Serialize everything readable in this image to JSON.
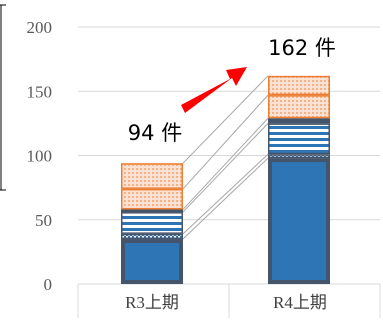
{
  "chart_data": {
    "type": "bar",
    "stacked": true,
    "categories": [
      "R3上期",
      "R4上期"
    ],
    "segments": [
      [
        35,
        4,
        17,
        2,
        16,
        20
      ],
      [
        98,
        3,
        24,
        4,
        18,
        15
      ]
    ],
    "totals": [
      94,
      162
    ],
    "total_labels": [
      "94 件",
      "162 件"
    ],
    "yticks": [
      "0",
      "50",
      "100",
      "150",
      "200"
    ],
    "ylim": [
      0,
      200
    ],
    "grid": true,
    "legend": "none",
    "colors": {
      "base_fill": "#2e75b6",
      "base_border": "#44546a",
      "stripe": "#2e75b6",
      "dots": "#2e75b6",
      "orange_edge": "#ed7d31",
      "orange_fill": "#f8cbad",
      "arrow": "#ff0000",
      "grid": "#d9d9d9",
      "connector": "#a6a6a6"
    }
  }
}
